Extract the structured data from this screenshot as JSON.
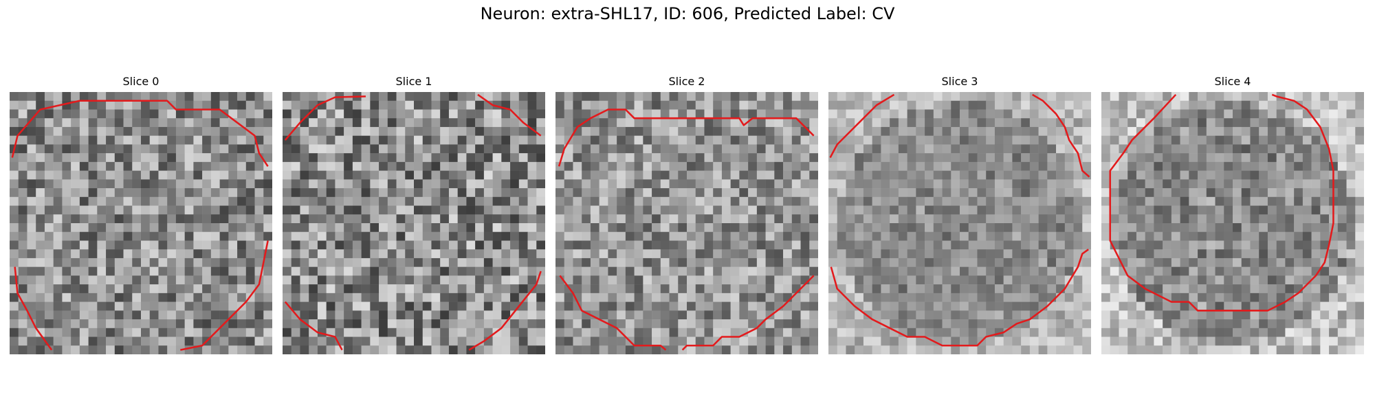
{
  "figure": {
    "title": "Neuron: extra-SHL17, ID: 606, Predicted Label: CV"
  },
  "panels": [
    {
      "title": "Slice 0",
      "seed": 11,
      "lo": 55,
      "hi": 225
    },
    {
      "title": "Slice 1",
      "seed": 23,
      "lo": 45,
      "hi": 235
    },
    {
      "title": "Slice 2",
      "seed": 37,
      "lo": 70,
      "hi": 225
    },
    {
      "title": "Slice 3",
      "seed": 51,
      "lo": 60,
      "hi": 220
    },
    {
      "title": "Slice 4",
      "seed": 79,
      "lo": 40,
      "hi": 235
    }
  ],
  "contour_color": "#e31a1c"
}
